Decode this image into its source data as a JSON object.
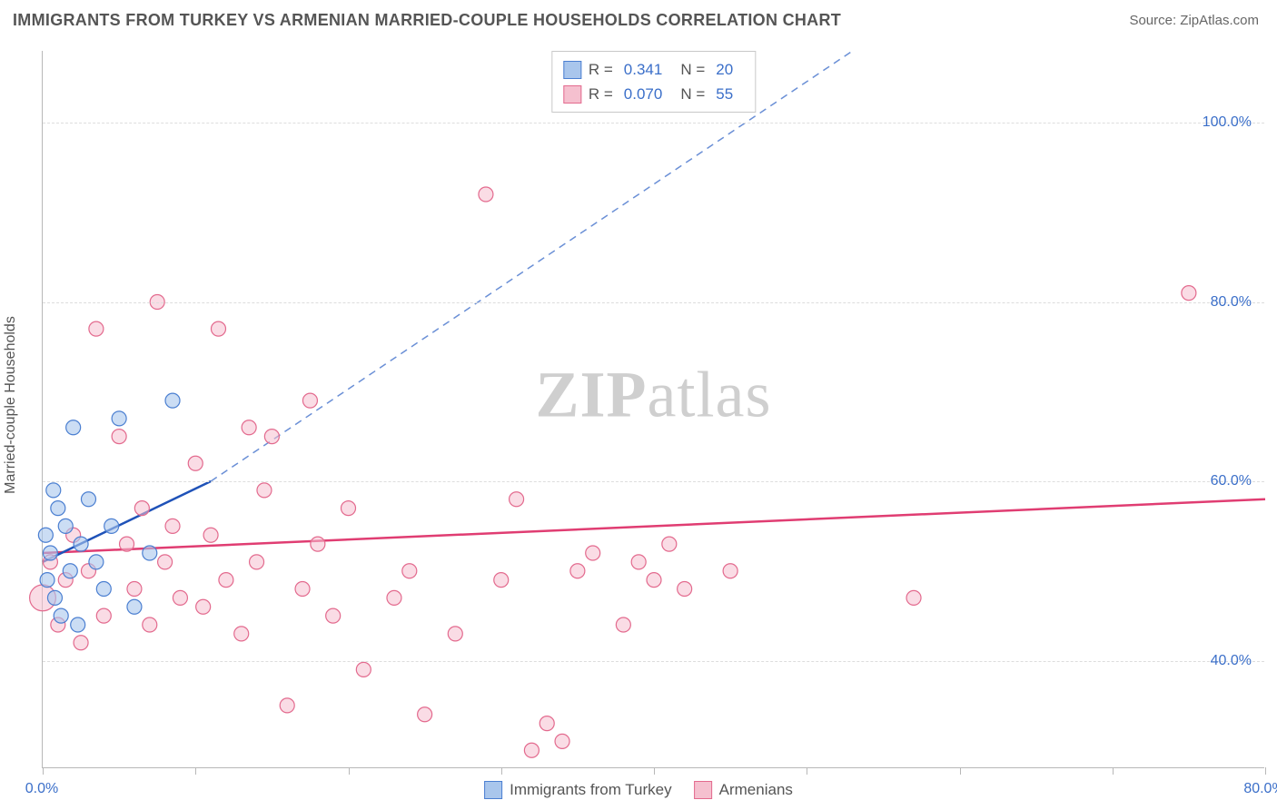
{
  "header": {
    "title": "IMMIGRANTS FROM TURKEY VS ARMENIAN MARRIED-COUPLE HOUSEHOLDS CORRELATION CHART",
    "source": "Source: ZipAtlas.com"
  },
  "chart": {
    "type": "scatter",
    "ylabel": "Married-couple Households",
    "watermark": "ZIPatlas",
    "background_color": "#ffffff",
    "grid_color": "#dddddd",
    "axis_color": "#b8b8b8",
    "tick_label_color": "#3b6fc9",
    "xlim": [
      0,
      80
    ],
    "ylim": [
      28,
      108
    ],
    "xticks": [
      0,
      10,
      20,
      30,
      40,
      50,
      60,
      70,
      80
    ],
    "xtick_labels": {
      "0": "0.0%",
      "80": "80.0%"
    },
    "ygrid": [
      40,
      60,
      80,
      100
    ],
    "ytick_labels": {
      "40": "40.0%",
      "60": "60.0%",
      "80": "80.0%",
      "100": "100.0%"
    },
    "series": {
      "turkey": {
        "label": "Immigrants from Turkey",
        "r_value": "0.341",
        "n_value": "20",
        "marker_fill": "#a9c6ec",
        "marker_stroke": "#4b7fd1",
        "marker_fill_opacity": 0.6,
        "marker_radius": 8,
        "line_color": "#1f52b8",
        "line_width": 2.5,
        "dash_color": "#6a8fd6",
        "trend": {
          "x1": 0,
          "y1": 51,
          "x2": 11,
          "y2": 60
        },
        "trend_dash": {
          "x1": 11,
          "y1": 60,
          "x2": 53,
          "y2": 108
        },
        "points": [
          [
            0.2,
            54
          ],
          [
            0.3,
            49
          ],
          [
            0.5,
            52
          ],
          [
            0.7,
            59
          ],
          [
            0.8,
            47
          ],
          [
            1.0,
            57
          ],
          [
            1.2,
            45
          ],
          [
            1.5,
            55
          ],
          [
            1.8,
            50
          ],
          [
            2.0,
            66
          ],
          [
            2.3,
            44
          ],
          [
            2.5,
            53
          ],
          [
            3.0,
            58
          ],
          [
            3.5,
            51
          ],
          [
            4.0,
            48
          ],
          [
            4.5,
            55
          ],
          [
            5.0,
            67
          ],
          [
            6.0,
            46
          ],
          [
            7.0,
            52
          ],
          [
            8.5,
            69
          ]
        ]
      },
      "armenians": {
        "label": "Armenians",
        "r_value": "0.070",
        "n_value": "55",
        "marker_fill": "#f5c0cf",
        "marker_stroke": "#e36a8e",
        "marker_fill_opacity": 0.55,
        "marker_radius": 8,
        "line_color": "#e03d72",
        "line_width": 2.5,
        "trend": {
          "x1": 0,
          "y1": 52,
          "x2": 80,
          "y2": 58
        },
        "points": [
          [
            0.0,
            47.0
          ],
          [
            0.5,
            51
          ],
          [
            1,
            44
          ],
          [
            1.5,
            49
          ],
          [
            2,
            54
          ],
          [
            2.5,
            42
          ],
          [
            3,
            50
          ],
          [
            3.5,
            77
          ],
          [
            4,
            45
          ],
          [
            5,
            65
          ],
          [
            5.5,
            53
          ],
          [
            6,
            48
          ],
          [
            6.5,
            57
          ],
          [
            7,
            44
          ],
          [
            7.5,
            80
          ],
          [
            8,
            51
          ],
          [
            8.5,
            55
          ],
          [
            9,
            47
          ],
          [
            10,
            62
          ],
          [
            10.5,
            46
          ],
          [
            11,
            54
          ],
          [
            11.5,
            77
          ],
          [
            12,
            49
          ],
          [
            13,
            43
          ],
          [
            13.5,
            66
          ],
          [
            14,
            51
          ],
          [
            14.5,
            59
          ],
          [
            15,
            65
          ],
          [
            16,
            35
          ],
          [
            17,
            48
          ],
          [
            17.5,
            69
          ],
          [
            18,
            53
          ],
          [
            19,
            45
          ],
          [
            20,
            57
          ],
          [
            21,
            39
          ],
          [
            23,
            47
          ],
          [
            24,
            50
          ],
          [
            25,
            34
          ],
          [
            27,
            43
          ],
          [
            29,
            92
          ],
          [
            30,
            49
          ],
          [
            31,
            58
          ],
          [
            32,
            30
          ],
          [
            33,
            33
          ],
          [
            34,
            31
          ],
          [
            35,
            50
          ],
          [
            36,
            52
          ],
          [
            38,
            44
          ],
          [
            39,
            51
          ],
          [
            40,
            49
          ],
          [
            41,
            53
          ],
          [
            42,
            48
          ],
          [
            45,
            50
          ],
          [
            57,
            47.0
          ],
          [
            75,
            81
          ]
        ]
      }
    },
    "legend_top": {
      "r_label": "R =",
      "n_label": "N ="
    },
    "legend_bottom": {
      "items": [
        "turkey",
        "armenians"
      ]
    }
  }
}
